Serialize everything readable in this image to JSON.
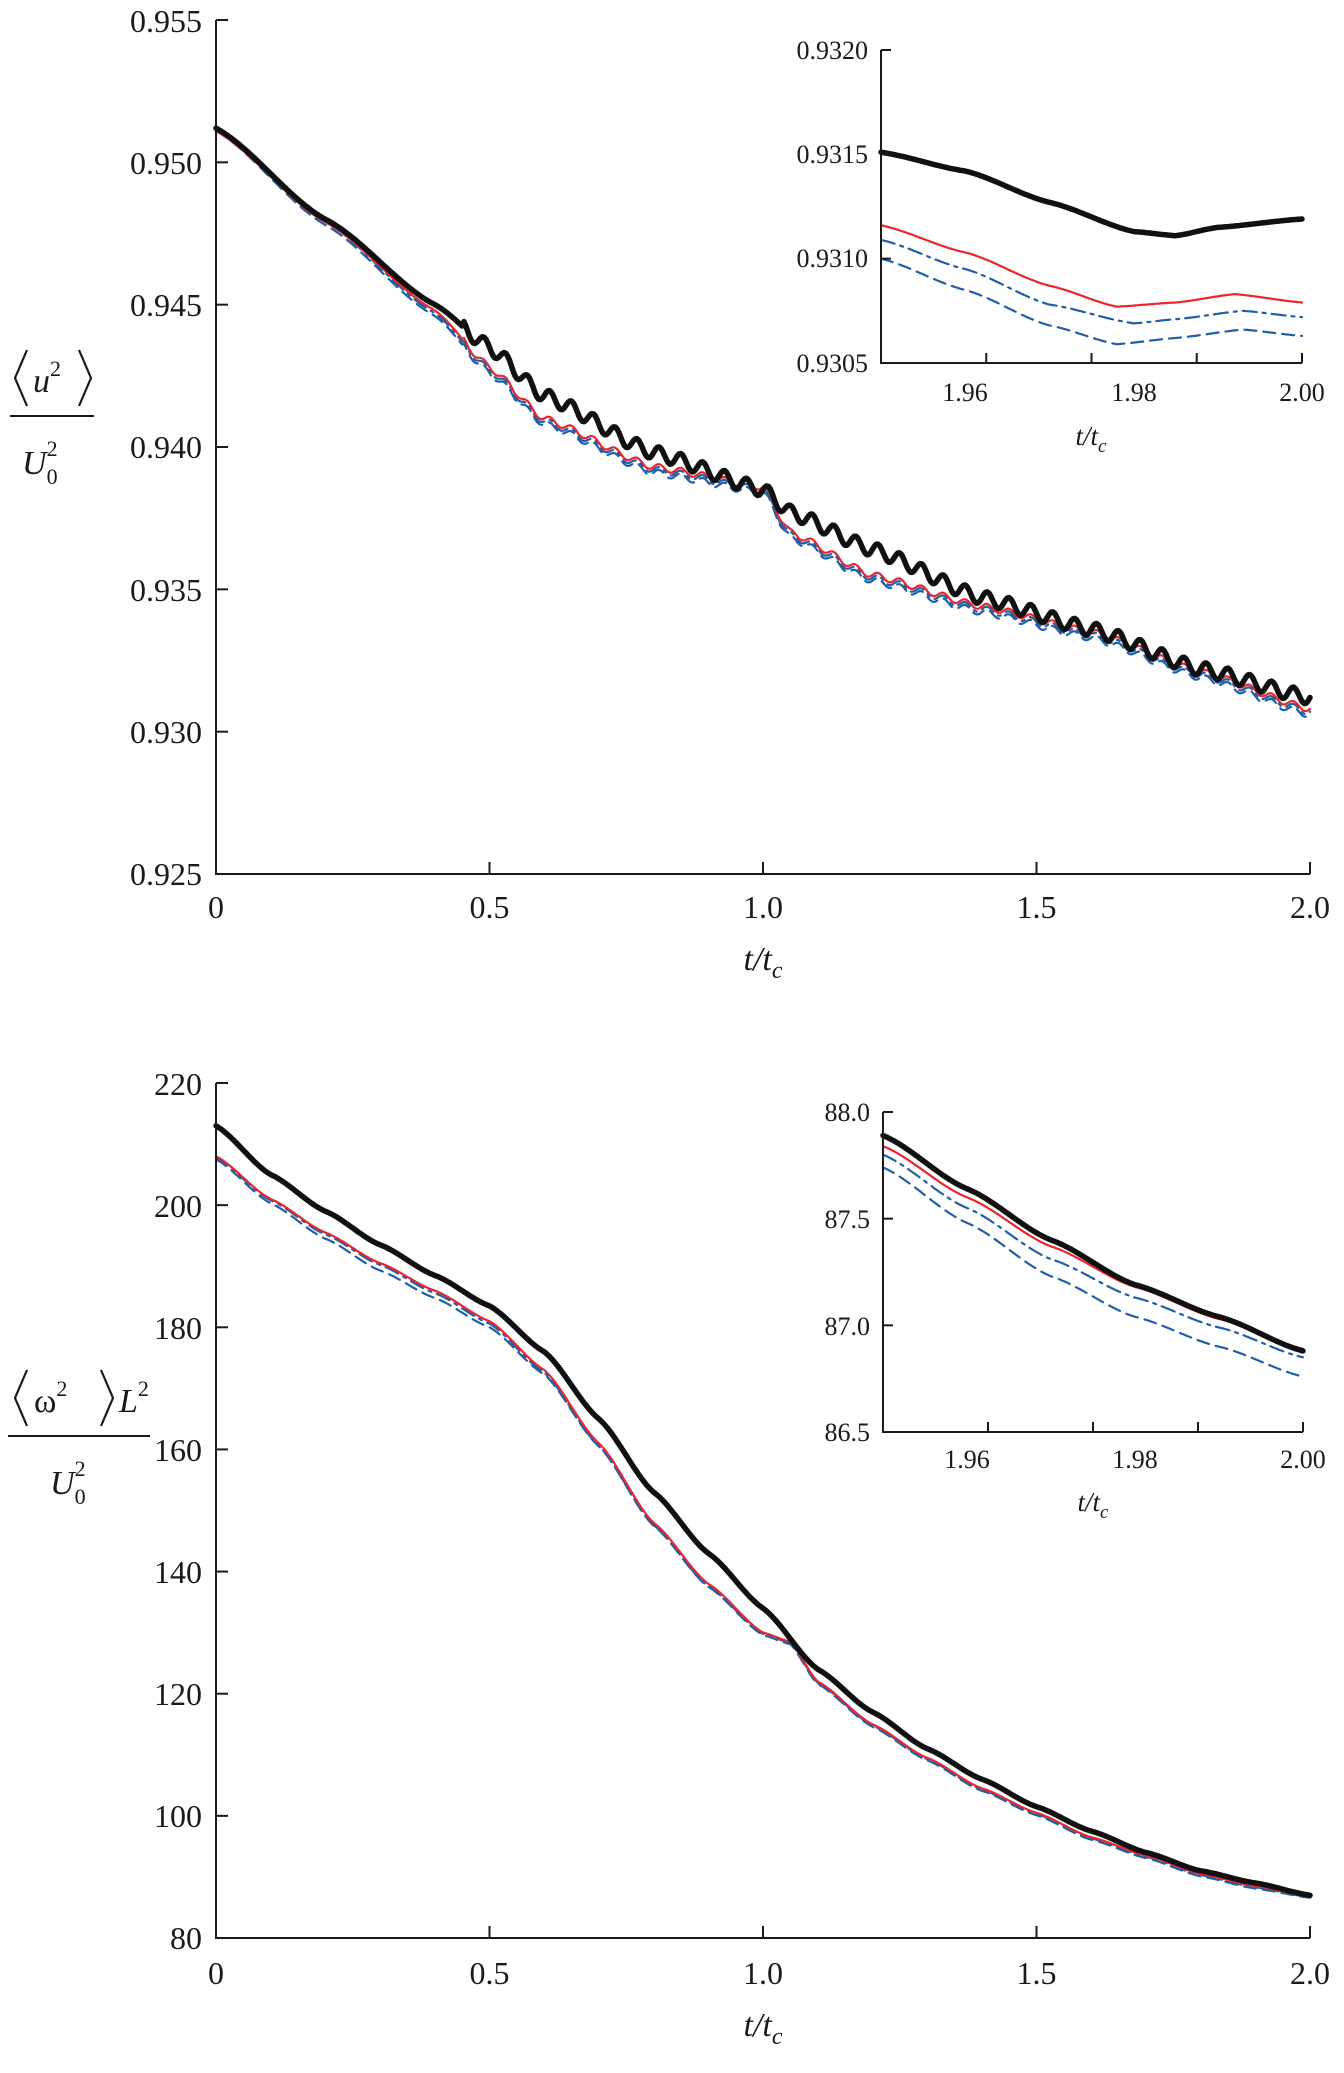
{
  "chart_data": [
    {
      "type": "line",
      "xlabel": "t/t_c",
      "ylabel": "⟨u²⟩ / U₀²",
      "xlim": [
        0,
        2.0
      ],
      "ylim": [
        0.925,
        0.955
      ],
      "x_ticks": [
        "0",
        "0.5",
        "1.0",
        "1.5",
        "2.0"
      ],
      "y_ticks": [
        "0.925",
        "0.930",
        "0.935",
        "0.940",
        "0.945",
        "0.950",
        "0.955"
      ],
      "grid": false,
      "series": [
        {
          "style": "thick-black-solid",
          "color": "#111111",
          "x": [
            0,
            0.2,
            0.4,
            0.5,
            0.6,
            0.8,
            1.0,
            1.05,
            1.2,
            1.4,
            1.6,
            1.8,
            2.0
          ],
          "y": [
            0.9512,
            0.948,
            0.945,
            0.9435,
            0.9418,
            0.9398,
            0.9385,
            0.9377,
            0.9364,
            0.9347,
            0.9336,
            0.9322,
            0.9312
          ],
          "wiggle": 0.00025
        },
        {
          "style": "thin-red-solid",
          "color": "#e8262b",
          "x": [
            0,
            0.2,
            0.4,
            0.5,
            0.6,
            0.8,
            1.0,
            1.05,
            1.2,
            1.4,
            1.6,
            1.8,
            2.0
          ],
          "y": [
            0.9511,
            0.9479,
            0.9448,
            0.9428,
            0.941,
            0.9393,
            0.9386,
            0.937,
            0.9355,
            0.9344,
            0.9335,
            0.9321,
            0.9308
          ],
          "wiggle": 0.00012
        },
        {
          "style": "blue-dash-dot",
          "color": "#1f5fa8",
          "x": [
            0,
            0.2,
            0.4,
            0.5,
            0.6,
            0.8,
            1.0,
            1.05,
            1.2,
            1.4,
            1.6,
            1.8,
            2.0
          ],
          "y": [
            0.9511,
            0.9479,
            0.9447,
            0.9427,
            0.9409,
            0.9392,
            0.9385,
            0.9369,
            0.9354,
            0.9343,
            0.9334,
            0.932,
            0.9307
          ],
          "wiggle": 0.00012
        },
        {
          "style": "blue-dashed",
          "color": "#1f5fa8",
          "x": [
            0,
            0.2,
            0.4,
            0.5,
            0.6,
            0.8,
            1.0,
            1.05,
            1.2,
            1.4,
            1.6,
            1.8,
            2.0
          ],
          "y": [
            0.9511,
            0.9478,
            0.9446,
            0.9426,
            0.9408,
            0.9391,
            0.9384,
            0.9368,
            0.9353,
            0.9342,
            0.9333,
            0.9319,
            0.9306
          ],
          "wiggle": 0.00012
        }
      ],
      "inset": {
        "xlim": [
          1.95,
          2.0
        ],
        "ylim": [
          0.9305,
          0.932
        ],
        "x_ticks": [
          "1.96",
          "1.98",
          "2.00"
        ],
        "y_ticks": [
          "0.9305",
          "0.9310",
          "0.9315",
          "0.9320"
        ],
        "xlabel": "t/t_c",
        "series": [
          {
            "style": "thick-black-solid",
            "color": "#111111",
            "x": [
              1.95,
              1.96,
              1.97,
              1.98,
              1.985,
              1.99,
              2.0
            ],
            "y": [
              0.93151,
              0.93142,
              0.93127,
              0.93113,
              0.93111,
              0.93115,
              0.93119
            ]
          },
          {
            "style": "thin-red-solid",
            "color": "#e8262b",
            "x": [
              1.95,
              1.96,
              1.97,
              1.978,
              1.985,
              1.992,
              2.0
            ],
            "y": [
              0.93116,
              0.93103,
              0.93087,
              0.93077,
              0.93079,
              0.93083,
              0.93079
            ]
          },
          {
            "style": "blue-dash-dot",
            "color": "#1f5fa8",
            "x": [
              1.95,
              1.96,
              1.97,
              1.98,
              1.985,
              1.993,
              2.0
            ],
            "y": [
              0.93109,
              0.93095,
              0.93078,
              0.93069,
              0.93071,
              0.93075,
              0.93072
            ]
          },
          {
            "style": "blue-dashed",
            "color": "#1f5fa8",
            "x": [
              1.95,
              1.96,
              1.97,
              1.978,
              1.985,
              1.993,
              2.0
            ],
            "y": [
              0.931,
              0.93085,
              0.93068,
              0.93059,
              0.93062,
              0.93066,
              0.93063
            ]
          }
        ]
      }
    },
    {
      "type": "line",
      "xlabel": "t/t_c",
      "ylabel": "⟨ω²⟩L² / U₀²",
      "xlim": [
        0,
        2.0
      ],
      "ylim": [
        80,
        220
      ],
      "x_ticks": [
        "0",
        "0.5",
        "1.0",
        "1.5",
        "2.0"
      ],
      "y_ticks": [
        "80",
        "100",
        "120",
        "140",
        "160",
        "180",
        "200",
        "220"
      ],
      "grid": false,
      "series": [
        {
          "style": "thick-black-solid",
          "color": "#111111",
          "x": [
            0,
            0.1,
            0.2,
            0.3,
            0.4,
            0.5,
            0.6,
            0.7,
            0.8,
            0.9,
            1.0,
            1.1,
            1.2,
            1.3,
            1.4,
            1.5,
            1.6,
            1.7,
            1.8,
            1.9,
            2.0
          ],
          "y": [
            213,
            205,
            199,
            193.5,
            188.5,
            183.5,
            176,
            165,
            153,
            143,
            134,
            124,
            117,
            111,
            106,
            101.5,
            97.5,
            94,
            91,
            89,
            87
          ]
        },
        {
          "style": "thin-red-solid",
          "color": "#e8262b",
          "x": [
            0,
            0.1,
            0.2,
            0.3,
            0.4,
            0.5,
            0.6,
            0.7,
            0.8,
            0.9,
            1.0,
            1.05,
            1.1,
            1.2,
            1.3,
            1.4,
            1.5,
            1.6,
            1.7,
            1.8,
            1.9,
            2.0
          ],
          "y": [
            208,
            201,
            195.5,
            190.5,
            186,
            181,
            173,
            161,
            148,
            138,
            130,
            128.5,
            122,
            115,
            109.5,
            104.5,
            100.5,
            96.5,
            93.5,
            90.5,
            88.5,
            86.8
          ]
        },
        {
          "style": "blue-dash-dot",
          "color": "#1f5fa8",
          "x": [
            0,
            0.1,
            0.2,
            0.3,
            0.4,
            0.5,
            0.6,
            0.7,
            0.8,
            0.9,
            1.0,
            1.05,
            1.1,
            1.2,
            1.3,
            1.4,
            1.5,
            1.6,
            1.7,
            1.8,
            1.9,
            2.0
          ],
          "y": [
            207.8,
            200.8,
            195.2,
            190.2,
            185.6,
            180.6,
            172.6,
            160.6,
            147.6,
            137.6,
            129.8,
            128.3,
            121.8,
            114.8,
            109.3,
            104.3,
            100.3,
            96.3,
            93.3,
            90.3,
            88.3,
            86.7
          ]
        },
        {
          "style": "blue-dashed",
          "color": "#1f5fa8",
          "x": [
            0,
            0.1,
            0.2,
            0.3,
            0.4,
            0.5,
            0.6,
            0.7,
            0.8,
            0.9,
            1.0,
            1.05,
            1.1,
            1.2,
            1.3,
            1.4,
            1.5,
            1.6,
            1.7,
            1.8,
            1.9,
            2.0
          ],
          "y": [
            207.5,
            200.3,
            194.5,
            189.3,
            184.8,
            180,
            172.3,
            160.5,
            147.5,
            137.5,
            129.6,
            128.1,
            121.6,
            114.6,
            109.1,
            104.1,
            100.1,
            96.1,
            93.1,
            90.1,
            88.1,
            86.6
          ]
        }
      ],
      "inset": {
        "xlim": [
          1.95,
          2.0
        ],
        "ylim": [
          86.5,
          88.0
        ],
        "x_ticks": [
          "1.96",
          "1.98",
          "2.00"
        ],
        "y_ticks": [
          "86.5",
          "87.0",
          "87.5",
          "88.0"
        ],
        "xlabel": "t/t_c",
        "series": [
          {
            "style": "thick-black-solid",
            "color": "#111111",
            "x": [
              1.95,
              1.96,
              1.97,
              1.98,
              1.99,
              2.0
            ],
            "y": [
              87.89,
              87.64,
              87.4,
              87.19,
              87.04,
              86.88
            ]
          },
          {
            "style": "thin-red-solid",
            "color": "#e8262b",
            "x": [
              1.95,
              1.96,
              1.97,
              1.98,
              1.99,
              2.0
            ],
            "y": [
              87.84,
              87.6,
              87.37,
              87.18,
              87.03,
              86.89
            ]
          },
          {
            "style": "blue-dash-dot",
            "color": "#1f5fa8",
            "x": [
              1.95,
              1.96,
              1.97,
              1.98,
              1.99,
              2.0
            ],
            "y": [
              87.8,
              87.55,
              87.31,
              87.13,
              86.99,
              86.85
            ]
          },
          {
            "style": "blue-dashed",
            "color": "#1f5fa8",
            "x": [
              1.95,
              1.96,
              1.97,
              1.98,
              1.99,
              2.0
            ],
            "y": [
              87.74,
              87.48,
              87.23,
              87.04,
              86.9,
              86.76
            ]
          }
        ]
      }
    }
  ]
}
